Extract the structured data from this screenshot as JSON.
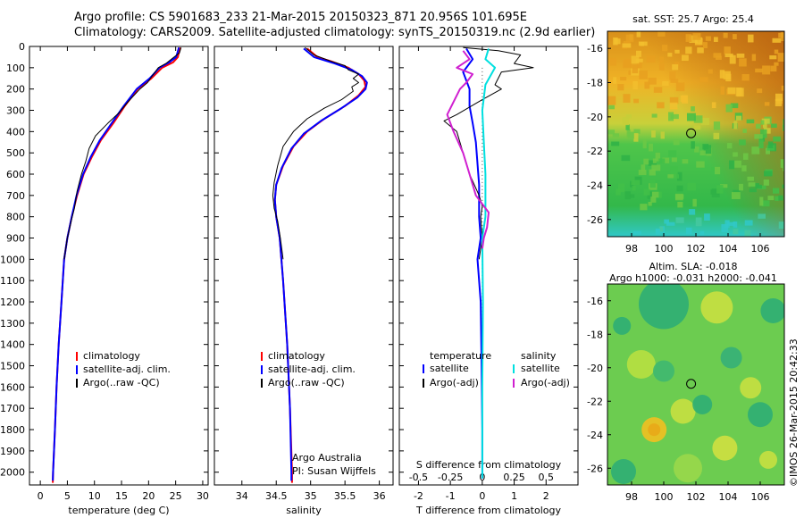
{
  "header": {
    "line1": "Argo profile: CS 5901683_233 21-Mar-2015 20150323_871 20.956S 101.695E",
    "line2": "Climatology: CARS2009. Satellite-adjusted climatology: synTS_20150319.nc (2.9d earlier)"
  },
  "credit": "©IMOS 26-Mar-2015 20:42:33",
  "colors": {
    "climatology": "#ff0000",
    "satellite": "#0000ff",
    "argo": "#000000",
    "sal_satellite": "#00e0e0",
    "sal_argo": "#d020d0",
    "dotted": "#555555"
  },
  "chart_data": [
    {
      "type": "line",
      "name": "temperature",
      "xlabel": "temperature (deg C)",
      "ylabel": "",
      "xlim": [
        -2,
        31
      ],
      "ylim": [
        2060,
        0
      ],
      "xticks": [
        0,
        5,
        10,
        15,
        20,
        25,
        30
      ],
      "yticks": [
        0,
        100,
        200,
        300,
        400,
        500,
        600,
        700,
        800,
        900,
        1000,
        1100,
        1200,
        1300,
        1400,
        1500,
        1600,
        1700,
        1800,
        1900,
        2000
      ],
      "legend": {
        "placement": "lower-middle",
        "entries": [
          "climatology",
          "satellite-adj. clim.",
          "Argo(..raw -QC)"
        ]
      },
      "series": [
        {
          "name": "climatology",
          "color": "#ff0000",
          "width": 2,
          "points": [
            [
              25.8,
              5
            ],
            [
              25.4,
              50
            ],
            [
              24.5,
              75
            ],
            [
              22.5,
              100
            ],
            [
              20.5,
              150
            ],
            [
              18,
              200
            ],
            [
              15.6,
              280
            ],
            [
              13.5,
              360
            ],
            [
              11.2,
              440
            ],
            [
              9.5,
              520
            ],
            [
              8,
              600
            ],
            [
              6.8,
              700
            ],
            [
              5.8,
              800
            ],
            [
              5,
              900
            ],
            [
              4.4,
              1000
            ],
            [
              3.9,
              1200
            ],
            [
              3.4,
              1400
            ],
            [
              3.0,
              1600
            ],
            [
              2.7,
              1800
            ],
            [
              2.35,
              2000
            ],
            [
              2.3,
              2050
            ]
          ]
        },
        {
          "name": "satellite",
          "color": "#0000ff",
          "width": 2,
          "points": [
            [
              25.6,
              5
            ],
            [
              25.1,
              50
            ],
            [
              23.8,
              75
            ],
            [
              22,
              100
            ],
            [
              20.2,
              150
            ],
            [
              17.8,
              200
            ],
            [
              15.4,
              280
            ],
            [
              13.2,
              360
            ],
            [
              11,
              440
            ],
            [
              9.3,
              520
            ],
            [
              7.9,
              600
            ],
            [
              6.7,
              700
            ],
            [
              5.8,
              800
            ],
            [
              5,
              900
            ],
            [
              4.4,
              1000
            ],
            [
              3.9,
              1200
            ],
            [
              3.4,
              1400
            ],
            [
              3.0,
              1600
            ],
            [
              2.7,
              1800
            ],
            [
              2.35,
              2000
            ],
            [
              2.3,
              2040
            ]
          ]
        },
        {
          "name": "Argo",
          "color": "#000000",
          "width": 1,
          "points": [
            [
              26.0,
              5
            ],
            [
              25.7,
              30
            ],
            [
              24.2,
              60
            ],
            [
              23.2,
              80
            ],
            [
              21.8,
              100
            ],
            [
              20.6,
              140
            ],
            [
              19.8,
              170
            ],
            [
              18.4,
              200
            ],
            [
              16.2,
              260
            ],
            [
              14.6,
              310
            ],
            [
              12.5,
              360
            ],
            [
              10.2,
              420
            ],
            [
              9.0,
              480
            ],
            [
              8.4,
              540
            ],
            [
              7.6,
              600
            ],
            [
              6.8,
              680
            ],
            [
              6.3,
              760
            ],
            [
              5.7,
              820
            ],
            [
              5.0,
              900
            ],
            [
              4.4,
              1000
            ]
          ]
        }
      ]
    },
    {
      "type": "line",
      "name": "salinity",
      "xlabel": "salinity",
      "xlim": [
        33.6,
        36.2
      ],
      "ylim": [
        2060,
        0
      ],
      "xticks": [
        34,
        34.5,
        35,
        35.5,
        36
      ],
      "legend": {
        "placement": "lower-middle",
        "entries": [
          "climatology",
          "satellite-adj. clim.",
          "Argo(..raw -QC)"
        ]
      },
      "annotation": [
        "Argo Australia",
        "PI: Susan Wijffels"
      ],
      "series": [
        {
          "name": "climatology",
          "color": "#ff0000",
          "width": 2,
          "points": [
            [
              34.95,
              10
            ],
            [
              35.1,
              50
            ],
            [
              35.3,
              70
            ],
            [
              35.55,
              100
            ],
            [
              35.7,
              130
            ],
            [
              35.78,
              160
            ],
            [
              35.8,
              190
            ],
            [
              35.7,
              230
            ],
            [
              35.5,
              280
            ],
            [
              35.2,
              340
            ],
            [
              34.95,
              400
            ],
            [
              34.75,
              470
            ],
            [
              34.6,
              560
            ],
            [
              34.5,
              650
            ],
            [
              34.48,
              720
            ],
            [
              34.5,
              800
            ],
            [
              34.55,
              900
            ],
            [
              34.6,
              1100
            ],
            [
              34.66,
              1400
            ],
            [
              34.7,
              1700
            ],
            [
              34.73,
              2000
            ],
            [
              34.73,
              2050
            ]
          ]
        },
        {
          "name": "satellite",
          "color": "#0000ff",
          "width": 2,
          "points": [
            [
              34.9,
              10
            ],
            [
              35.05,
              50
            ],
            [
              35.35,
              80
            ],
            [
              35.6,
              110
            ],
            [
              35.75,
              140
            ],
            [
              35.82,
              170
            ],
            [
              35.8,
              200
            ],
            [
              35.68,
              240
            ],
            [
              35.45,
              290
            ],
            [
              35.15,
              350
            ],
            [
              34.9,
              410
            ],
            [
              34.72,
              480
            ],
            [
              34.58,
              570
            ],
            [
              34.5,
              650
            ],
            [
              34.48,
              720
            ],
            [
              34.5,
              800
            ],
            [
              34.55,
              900
            ],
            [
              34.6,
              1100
            ],
            [
              34.66,
              1400
            ],
            [
              34.7,
              1700
            ],
            [
              34.72,
              2000
            ],
            [
              34.72,
              2040
            ]
          ]
        },
        {
          "name": "Argo",
          "color": "#000000",
          "width": 1,
          "points": [
            [
              34.92,
              5
            ],
            [
              35.05,
              40
            ],
            [
              35.3,
              70
            ],
            [
              35.5,
              90
            ],
            [
              35.55,
              110
            ],
            [
              35.7,
              130
            ],
            [
              35.62,
              150
            ],
            [
              35.7,
              170
            ],
            [
              35.6,
              190
            ],
            [
              35.62,
              210
            ],
            [
              35.45,
              250
            ],
            [
              35.2,
              290
            ],
            [
              34.95,
              340
            ],
            [
              34.75,
              400
            ],
            [
              34.6,
              470
            ],
            [
              34.52,
              560
            ],
            [
              34.47,
              640
            ],
            [
              34.45,
              700
            ],
            [
              34.47,
              760
            ],
            [
              34.52,
              820
            ],
            [
              34.56,
              900
            ],
            [
              34.58,
              950
            ],
            [
              34.6,
              1000
            ]
          ]
        }
      ]
    },
    {
      "type": "line",
      "name": "difference",
      "xlabel": "T difference from climatology",
      "xlabel_top": "S difference from climatology",
      "xlim": [
        -2.6,
        3.0
      ],
      "ylim": [
        2060,
        0
      ],
      "xticks": [
        -2,
        -1,
        0,
        1,
        2
      ],
      "sticks_labels": [
        "-0.5",
        "-0.25",
        "0",
        "0.25",
        "0.5"
      ],
      "legend": {
        "placement": "lower-middle",
        "header_left": "temperature",
        "header_right": "salinity",
        "left": [
          "satellite",
          "Argo(-adj)"
        ],
        "right": [
          "satellite",
          "Argo(-adj)"
        ]
      },
      "series": [
        {
          "name": "T satellite",
          "color": "#0000ff",
          "width": 2,
          "points": [
            [
              -0.5,
              10
            ],
            [
              -0.3,
              60
            ],
            [
              -0.6,
              120
            ],
            [
              -0.4,
              200
            ],
            [
              -0.4,
              280
            ],
            [
              -0.3,
              360
            ],
            [
              -0.2,
              450
            ],
            [
              -0.15,
              550
            ],
            [
              -0.1,
              650
            ],
            [
              -0.1,
              800
            ],
            [
              -0.05,
              900
            ],
            [
              -0.15,
              1000
            ],
            [
              -0.05,
              1200
            ],
            [
              -0.02,
              1500
            ],
            [
              0,
              1800
            ],
            [
              0,
              2030
            ]
          ]
        },
        {
          "name": "T Argo",
          "color": "#000000",
          "width": 1,
          "points": [
            [
              -0.6,
              5
            ],
            [
              0.5,
              20
            ],
            [
              1.2,
              40
            ],
            [
              1.0,
              80
            ],
            [
              1.6,
              100
            ],
            [
              0.6,
              120
            ],
            [
              0.4,
              180
            ],
            [
              0.6,
              200
            ],
            [
              0,
              250
            ],
            [
              -0.8,
              320
            ],
            [
              -1.2,
              350
            ],
            [
              -0.8,
              400
            ],
            [
              -0.6,
              500
            ],
            [
              -0.4,
              600
            ],
            [
              -0.1,
              700
            ],
            [
              0,
              750
            ],
            [
              -0.05,
              800
            ],
            [
              0,
              900
            ],
            [
              -0.1,
              1000
            ]
          ]
        },
        {
          "name": "S satellite",
          "color": "#00e0e0",
          "width": 2,
          "points": [
            [
              0.2,
              10
            ],
            [
              0.1,
              60
            ],
            [
              0.4,
              100
            ],
            [
              0.1,
              180
            ],
            [
              0,
              300
            ],
            [
              0.05,
              450
            ],
            [
              0.1,
              600
            ],
            [
              0.1,
              800
            ],
            [
              0,
              900
            ],
            [
              0.02,
              1200
            ],
            [
              0,
              1600
            ],
            [
              0,
              2000
            ],
            [
              0,
              2030
            ]
          ]
        },
        {
          "name": "S Argo",
          "color": "#d020d0",
          "width": 2,
          "points": [
            [
              -0.6,
              20
            ],
            [
              -0.4,
              60
            ],
            [
              -0.8,
              100
            ],
            [
              -0.3,
              130
            ],
            [
              -0.5,
              170
            ],
            [
              -0.7,
              200
            ],
            [
              -1.1,
              320
            ],
            [
              -0.9,
              400
            ],
            [
              -0.6,
              500
            ],
            [
              -0.4,
              600
            ],
            [
              -0.2,
              700
            ],
            [
              0.2,
              780
            ],
            [
              0.15,
              850
            ],
            [
              0.05,
              900
            ],
            [
              0,
              950
            ]
          ]
        }
      ]
    },
    {
      "type": "heatmap",
      "name": "sst-map",
      "title": "sat. SST: 25.7 Argo: 25.4",
      "xlim": [
        96.5,
        107.5
      ],
      "ylim": [
        -27,
        -15
      ],
      "xticks": [
        98,
        100,
        102,
        104,
        106
      ],
      "yticks": [
        -16,
        -18,
        -20,
        -22,
        -24,
        -26
      ],
      "marker": [
        101.7,
        -20.96
      ]
    },
    {
      "type": "heatmap",
      "name": "sla-map",
      "title": [
        "Altim. SLA: -0.018",
        "Argo h1000: -0.031 h2000: -0.041"
      ],
      "xlim": [
        96.5,
        107.5
      ],
      "ylim": [
        -27,
        -15
      ],
      "xticks": [
        98,
        100,
        102,
        104,
        106
      ],
      "yticks": [
        -16,
        -18,
        -20,
        -22,
        -24,
        -26
      ],
      "marker": [
        101.7,
        -20.96
      ]
    }
  ]
}
